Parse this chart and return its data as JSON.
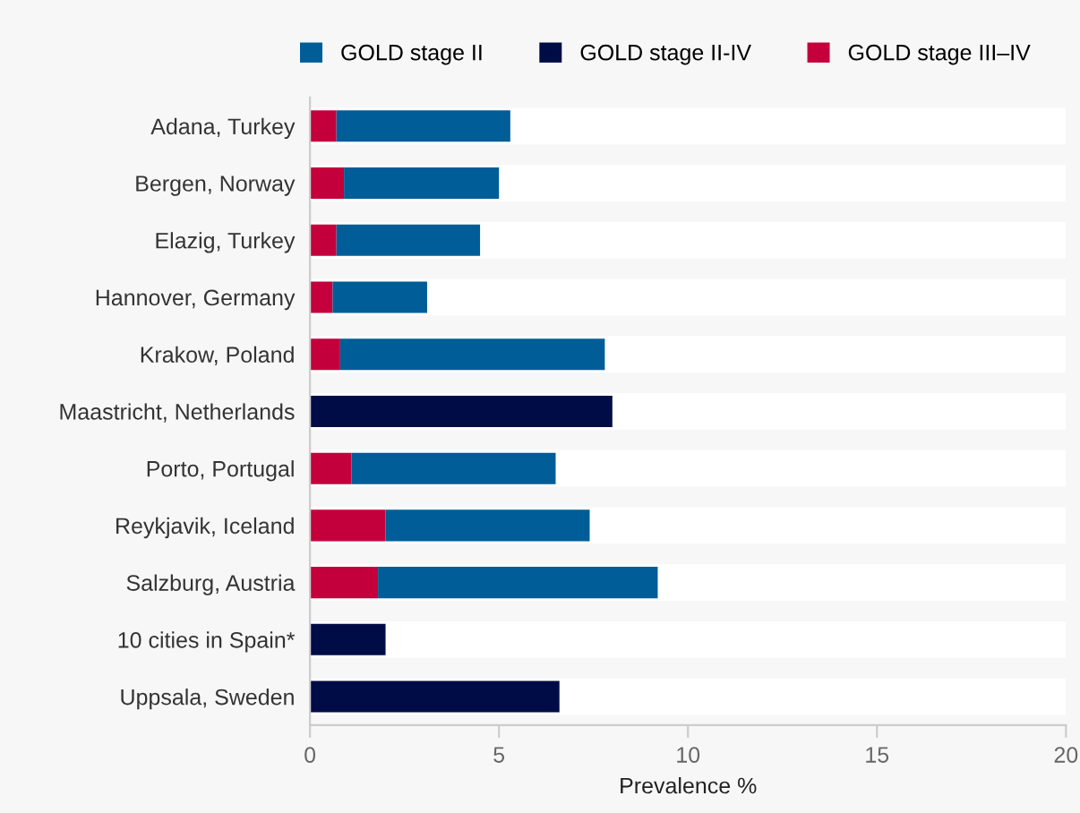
{
  "chart_data": {
    "type": "bar",
    "orientation": "horizontal",
    "stacked": true,
    "categories": [
      "Adana, Turkey",
      "Bergen, Norway",
      "Elazig, Turkey",
      "Hannover, Germany",
      "Krakow, Poland",
      "Maastricht, Netherlands",
      "Porto, Portugal",
      "Reykjavik, Iceland",
      "Salzburg, Austria",
      "10 cities in Spain*",
      "Uppsala, Sweden"
    ],
    "series": [
      {
        "name": "GOLD stage III–IV",
        "color": "#c4003c",
        "values": [
          0.7,
          0.9,
          0.7,
          0.6,
          0.8,
          null,
          1.1,
          2.0,
          1.8,
          null,
          null
        ]
      },
      {
        "name": "GOLD stage II-IV",
        "color": "#000c45",
        "values": [
          null,
          null,
          null,
          null,
          null,
          8.0,
          null,
          null,
          null,
          2.0,
          6.6
        ]
      },
      {
        "name": "GOLD stage II",
        "color": "#005d97",
        "values": [
          4.6,
          4.1,
          3.8,
          2.5,
          7.0,
          null,
          5.4,
          5.4,
          7.4,
          null,
          null
        ]
      }
    ],
    "xlim": [
      0,
      20
    ],
    "xticks": [
      0,
      5,
      10,
      15,
      20
    ],
    "xlabel": "Prevalence %",
    "legend": "top",
    "grid": false
  }
}
